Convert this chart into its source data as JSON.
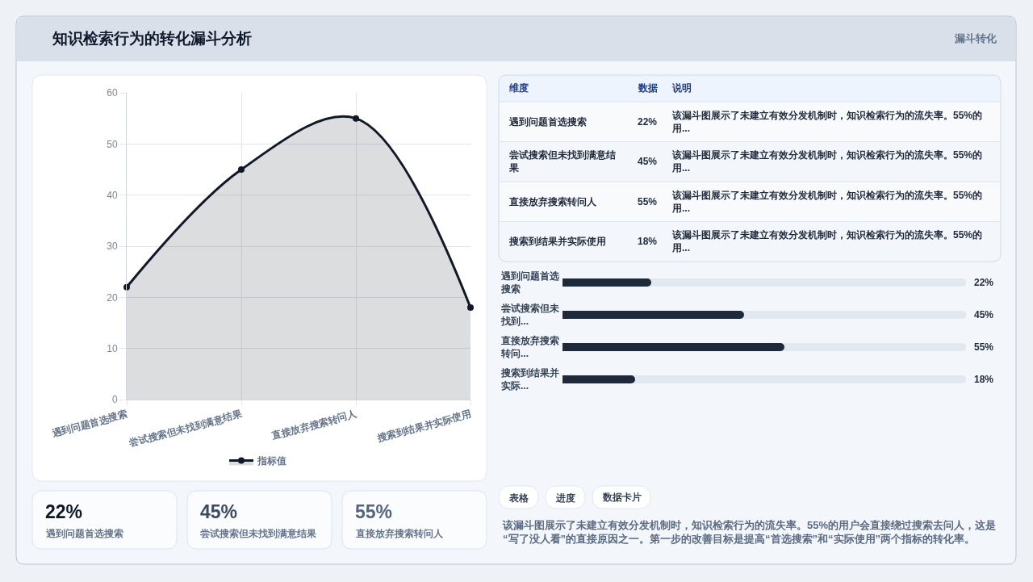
{
  "chart_data": [
    {
      "type": "other",
      "title": "知识检索行为的转化漏斗分析",
      "annotations": [
        "漏斗转化"
      ]
    },
    {
      "type": "area",
      "categories": [
        "遇到问题首选搜索",
        "尝试搜索但未找到满意结果",
        "直接放弃搜索转问人",
        "搜索到结果并实际使用"
      ],
      "series": [
        {
          "name": "指标值",
          "color": "#111827",
          "values": [
            22,
            45,
            55,
            18
          ]
        }
      ],
      "ylim": [
        0,
        60
      ],
      "yticks": [
        0,
        10,
        20,
        30,
        40,
        50,
        60
      ],
      "grid": true,
      "legend": "bottom",
      "marker": "circle"
    },
    {
      "type": "other",
      "annotations": [
        "维度",
        "数据",
        "说明",
        "遇到问题首选搜索",
        "22%",
        "该漏斗图展示了未建立有效分发机制时，知识检索行为的流失率。55%的用...",
        "尝试搜索但未找到满意结果",
        "45%",
        "该漏斗图展示了未建立有效分发机制时，知识检索行为的流失率。55%的用...",
        "直接放弃搜索转问人",
        "55%",
        "该漏斗图展示了未建立有效分发机制时，知识检索行为的流失率。55%的用...",
        "搜索到结果并实际使用",
        "18%",
        "该漏斗图展示了未建立有效分发机制时，知识检索行为的流失率。55%的用..."
      ]
    },
    {
      "type": "bar",
      "orientation": "horizontal",
      "categories": [
        "遇到问题首选搜索",
        "尝试搜索但未找到...",
        "直接放弃搜索转问...",
        "搜索到结果并实际..."
      ],
      "values": [
        22,
        45,
        55,
        18
      ],
      "value_labels": [
        "22%",
        "45%",
        "55%",
        "18%"
      ],
      "color": "#1e293b",
      "xlim": [
        0,
        100
      ],
      "tick_labels": "y"
    },
    {
      "type": "other",
      "annotations": [
        "22%",
        "遇到问题首选搜索",
        "45%",
        "尝试搜索但未找到满意结果",
        "55%",
        "直接放弃搜索转问人"
      ],
      "colors": [
        "#0f172a",
        "#3b4a63",
        "#55657d"
      ]
    },
    {
      "type": "other",
      "annotations": [
        "表格",
        "进度",
        "数据卡片",
        "该漏斗图展示了未建立有效分发机制时，知识检索行为的流失率。55%的用户会直接绕过搜索去问人，这是“写了没人看”的直接原因之一。第一步的改善目标是提高“首选搜索”和“实际使用”两个指标的转化率。"
      ]
    }
  ]
}
